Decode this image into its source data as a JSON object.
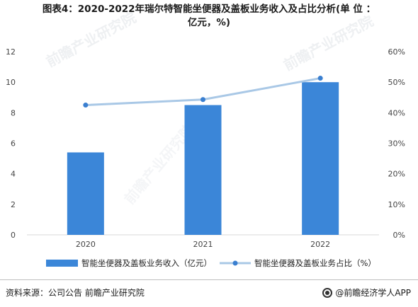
{
  "title": {
    "line1": "图表4：2020-2022年瑞尔特智能坐便器及盖板业务收入及占比分析(单 位 ：",
    "line2": "亿元，%)"
  },
  "footer": {
    "source": "资料来源：公司公告 前瞻产业研究院",
    "brand": "@前瞻经济学人APP"
  },
  "watermark": "前瞻产业研究院",
  "colors": {
    "bar": "#3b86d8",
    "line": "#a9c8e6",
    "marker": "#3a7fd0",
    "grid": "#d9d9d9"
  },
  "chart_data": {
    "type": "bar",
    "categories": [
      "2020",
      "2021",
      "2022"
    ],
    "series": [
      {
        "name": "智能坐便器及盖板业务收入（亿元）",
        "type": "bar",
        "axis": "left",
        "values": [
          5.4,
          8.5,
          10.0
        ]
      },
      {
        "name": "智能坐便器及盖板业务占比（%）",
        "type": "line",
        "axis": "right",
        "values": [
          42.5,
          44.3,
          51.3
        ]
      }
    ],
    "left_axis": {
      "ylim": [
        0,
        12
      ],
      "ticks": [
        "0",
        "2",
        "4",
        "6",
        "8",
        "10",
        "12"
      ]
    },
    "right_axis": {
      "ylim": [
        0,
        60
      ],
      "ticks": [
        "0%",
        "10%",
        "20%",
        "30%",
        "40%",
        "50%",
        "60%"
      ]
    },
    "grid": false,
    "legend_position": "bottom"
  }
}
